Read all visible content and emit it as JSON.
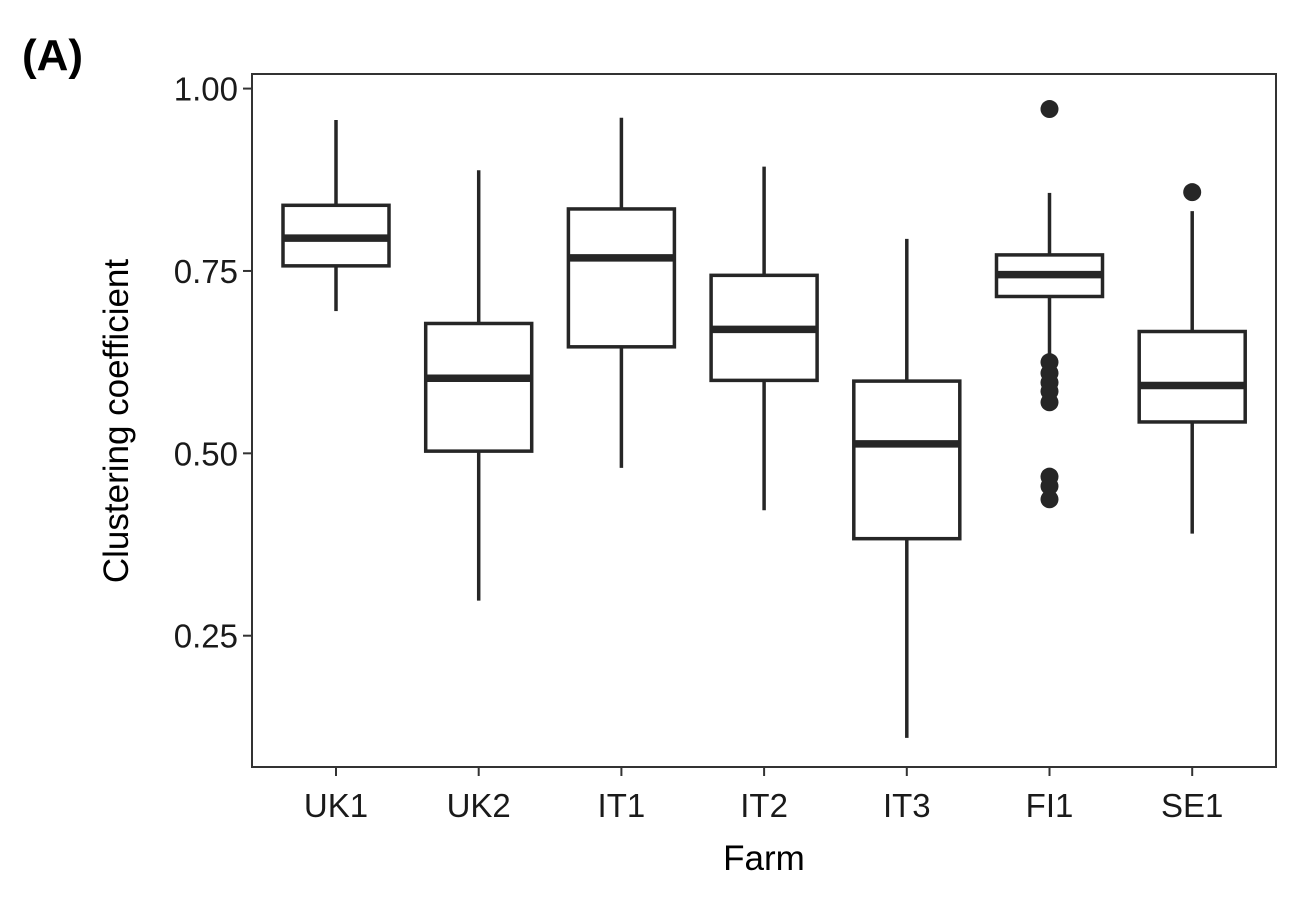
{
  "panel_label": "(A)",
  "chart_data": {
    "type": "box",
    "title": "",
    "xlabel": "Farm",
    "ylabel": "Clustering coefficient",
    "ylim": [
      0.07,
      1.02
    ],
    "yticks": [
      0.25,
      0.5,
      0.75,
      1.0
    ],
    "ytick_labels": [
      "0.25",
      "0.50",
      "0.75",
      "1.00"
    ],
    "grid": false,
    "categories": [
      "UK1",
      "UK2",
      "IT1",
      "IT2",
      "IT3",
      "FI1",
      "SE1"
    ],
    "boxes": [
      {
        "category": "UK1",
        "whisker_low": 0.695,
        "q1": 0.757,
        "median": 0.795,
        "q3": 0.84,
        "whisker_high": 0.957,
        "outliers": []
      },
      {
        "category": "UK2",
        "whisker_low": 0.298,
        "q1": 0.503,
        "median": 0.603,
        "q3": 0.678,
        "whisker_high": 0.888,
        "outliers": []
      },
      {
        "category": "IT1",
        "whisker_low": 0.48,
        "q1": 0.646,
        "median": 0.768,
        "q3": 0.835,
        "whisker_high": 0.96,
        "outliers": []
      },
      {
        "category": "IT2",
        "whisker_low": 0.422,
        "q1": 0.6,
        "median": 0.67,
        "q3": 0.744,
        "whisker_high": 0.893,
        "outliers": []
      },
      {
        "category": "IT3",
        "whisker_low": 0.11,
        "q1": 0.383,
        "median": 0.513,
        "q3": 0.599,
        "whisker_high": 0.794,
        "outliers": []
      },
      {
        "category": "FI1",
        "whisker_low": 0.628,
        "q1": 0.715,
        "median": 0.745,
        "q3": 0.772,
        "whisker_high": 0.857,
        "outliers": [
          0.972,
          0.625,
          0.61,
          0.597,
          0.585,
          0.57,
          0.468,
          0.455,
          0.437
        ]
      },
      {
        "category": "SE1",
        "whisker_low": 0.39,
        "q1": 0.543,
        "median": 0.593,
        "q3": 0.667,
        "whisker_high": 0.832,
        "outliers": [
          0.858
        ]
      }
    ]
  },
  "colors": {
    "stroke": "#262626",
    "fill": "#ffffff",
    "panel_border": "#333333"
  }
}
